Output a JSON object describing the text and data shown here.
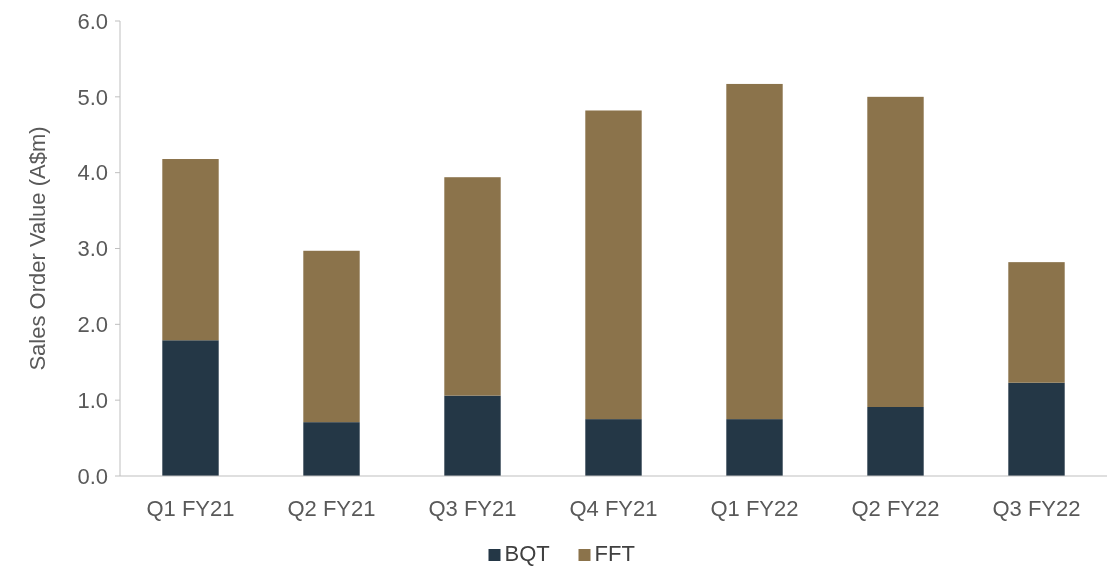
{
  "chart_data": {
    "type": "bar",
    "stacked": true,
    "ylabel": "Sales Order Value (A$m)",
    "categories": [
      "Q1 FY21",
      "Q2 FY21",
      "Q3 FY21",
      "Q4 FY21",
      "Q1 FY22",
      "Q2 FY22",
      "Q3 FY22"
    ],
    "series": [
      {
        "name": "BQT",
        "color": "#243746",
        "values": [
          1.79,
          0.71,
          1.06,
          0.75,
          0.75,
          0.91,
          1.23
        ]
      },
      {
        "name": "FFT",
        "color": "#8b734b",
        "values": [
          2.39,
          2.26,
          2.88,
          4.07,
          4.42,
          4.09,
          1.59
        ]
      }
    ],
    "ylim": [
      0,
      6
    ],
    "yticks": [
      {
        "value": 0,
        "label": "0.0"
      },
      {
        "value": 1,
        "label": "1.0"
      },
      {
        "value": 2,
        "label": "2.0"
      },
      {
        "value": 3,
        "label": "3.0"
      },
      {
        "value": 4,
        "label": "4.0"
      },
      {
        "value": 5,
        "label": "5.0"
      },
      {
        "value": 6,
        "label": "6.0"
      }
    ],
    "grid": false,
    "legend": "bottom"
  }
}
